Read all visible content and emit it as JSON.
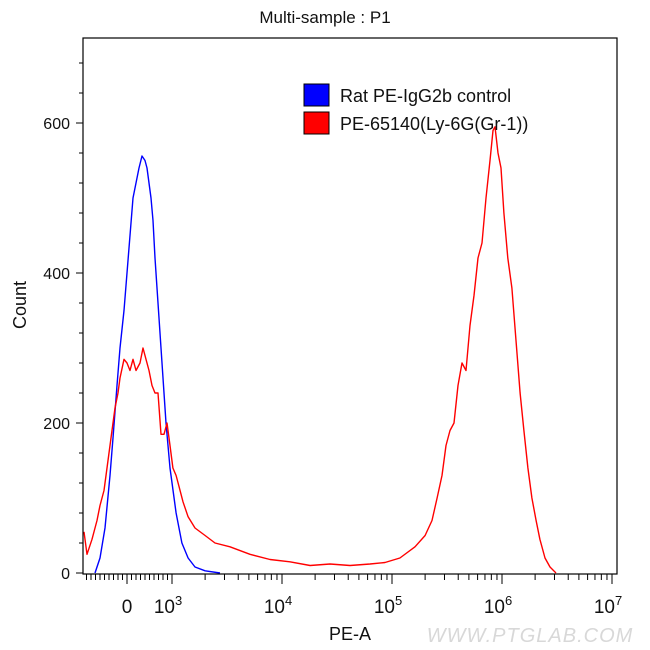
{
  "chart_data": {
    "type": "line",
    "title": "Multi-sample : P1",
    "xlabel": "PE-A",
    "ylabel": "Count",
    "x_scale": "biexponential",
    "xlim": [
      -1000,
      10000000
    ],
    "ylim": [
      0,
      713
    ],
    "x_ticks": [
      {
        "value": 0,
        "label": "0",
        "sup": ""
      },
      {
        "value": 1000,
        "label": "10",
        "sup": "3"
      },
      {
        "value": 10000,
        "label": "10",
        "sup": "4"
      },
      {
        "value": 100000,
        "label": "10",
        "sup": "5"
      },
      {
        "value": 1000000,
        "label": "10",
        "sup": "6"
      },
      {
        "value": 10000000,
        "label": "10",
        "sup": "7"
      }
    ],
    "y_ticks": [
      0,
      200,
      400,
      600
    ],
    "grid": false,
    "legend_position": "top-right",
    "watermark": "WWW.PTGLAB.COM",
    "series": [
      {
        "name": "Rat PE-IgG2b control",
        "color": "#0000ff",
        "x": [
          -711,
          -600,
          -489,
          -378,
          -311,
          -222,
          -156,
          -67,
          0,
          67,
          133,
          200,
          267,
          333,
          400,
          444,
          489,
          533,
          578,
          622,
          667,
          733,
          800,
          867,
          956,
          1090,
          1230,
          1400,
          1620,
          2000,
          2730
        ],
        "y": [
          0,
          20,
          60,
          130,
          180,
          250,
          300,
          350,
          400,
          450,
          500,
          520,
          540,
          556,
          550,
          540,
          520,
          500,
          470,
          420,
          380,
          320,
          260,
          200,
          140,
          80,
          40,
          20,
          8,
          3,
          0
        ]
      },
      {
        "name": "PE-65140(Ly-6G(Gr-1))",
        "color": "#ff0000",
        "x": [
          -956,
          -889,
          -778,
          -667,
          -600,
          -511,
          -422,
          -333,
          -267,
          -200,
          -156,
          -67,
          0,
          67,
          133,
          200,
          289,
          356,
          422,
          489,
          556,
          622,
          689,
          756,
          822,
          889,
          956,
          1020,
          1090,
          1160,
          1260,
          1400,
          1620,
          2000,
          2460,
          3370,
          5120,
          7780,
          11800,
          18000,
          27300,
          41500,
          63100,
          86300,
          118000,
          162000,
          200000,
          231000,
          257000,
          285000,
          310000,
          337000,
          366000,
          398000,
          433000,
          471000,
          512000,
          556000,
          605000,
          658000,
          716000,
          778000,
          828000,
          863000,
          920000,
          980000,
          1040000,
          1130000,
          1230000,
          1340000,
          1460000,
          1580000,
          1720000,
          1870000,
          2040000,
          2210000,
          2460000,
          2730000,
          3100000
        ],
        "y": [
          55,
          25,
          45,
          70,
          90,
          110,
          150,
          190,
          220,
          240,
          260,
          285,
          280,
          270,
          285,
          270,
          280,
          300,
          285,
          270,
          250,
          240,
          240,
          185,
          185,
          200,
          170,
          140,
          130,
          115,
          95,
          75,
          60,
          50,
          40,
          35,
          25,
          18,
          15,
          10,
          12,
          10,
          12,
          14,
          20,
          35,
          50,
          70,
          100,
          130,
          170,
          190,
          200,
          250,
          280,
          270,
          330,
          370,
          420,
          440,
          500,
          550,
          590,
          595,
          560,
          540,
          480,
          420,
          380,
          310,
          240,
          190,
          140,
          100,
          70,
          45,
          20,
          8,
          0
        ]
      }
    ]
  }
}
